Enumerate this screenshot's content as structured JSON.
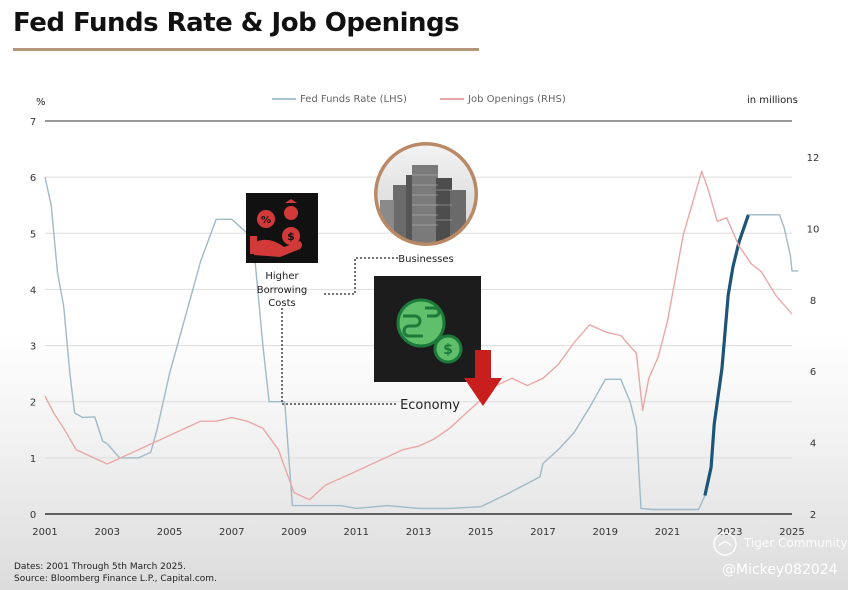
{
  "header": {
    "title": "Fed Funds Rate & Job Openings"
  },
  "legend": {
    "fed": "Fed Funds Rate (LHS)",
    "jobs": "Job Openings (RHS)",
    "left_unit": "%",
    "right_unit": "in millions"
  },
  "annotations": {
    "borrowing": [
      "Higher",
      "Borrowing",
      "Costs"
    ],
    "businesses": "Businesses",
    "economy": "Economy"
  },
  "footnote": {
    "line1": "Dates: 2001 Through 5th March 2025.",
    "line2": "Source: Bloomberg Finance L.P., Capital.com."
  },
  "watermark": {
    "community": "Tiger Community",
    "user": "@Mickey082024"
  },
  "colors": {
    "fed": "#9fbac8",
    "fed_highlight": "#1c5577",
    "jobs": "#e9a8a6",
    "arrow": "#c81e1e",
    "title_underline": "#b4977b"
  },
  "icons": [
    "percent-dollar-hand-icon",
    "office-buildings-icon",
    "globe-dollar-icon",
    "down-arrow-icon"
  ],
  "chart_data": {
    "type": "line",
    "x_ticks": [
      2001,
      2003,
      2005,
      2007,
      2009,
      2011,
      2013,
      2015,
      2017,
      2019,
      2021,
      2023,
      2025
    ],
    "y_left_ticks": [
      0,
      1,
      2,
      3,
      4,
      5,
      6,
      7
    ],
    "y_right_ticks": [
      2,
      4,
      6,
      8,
      10,
      12
    ],
    "xlim": [
      2001,
      2025
    ],
    "ylim_left": [
      0,
      7
    ],
    "ylim_right": [
      2,
      13
    ],
    "series": [
      {
        "name": "Fed Funds Rate (LHS)",
        "axis": "left",
        "x": [
          2001.0,
          2001.2,
          2001.4,
          2001.6,
          2001.8,
          2001.95,
          2002.2,
          2002.6,
          2002.85,
          2003.0,
          2003.4,
          2003.5,
          2004.0,
          2004.4,
          2004.6,
          2005.0,
          2005.5,
          2006.0,
          2006.5,
          2006.7,
          2007.0,
          2007.5,
          2007.7,
          2008.0,
          2008.2,
          2008.7,
          2008.95,
          2009.5,
          2010.0,
          2010.5,
          2011.0,
          2012.0,
          2013.0,
          2014.0,
          2015.0,
          2015.9,
          2016.0,
          2016.9,
          2017.0,
          2017.5,
          2018.0,
          2018.5,
          2019.0,
          2019.5,
          2019.8,
          2020.0,
          2020.15,
          2020.5,
          2021.0,
          2022.0,
          2022.2
        ],
        "y": [
          6.0,
          5.5,
          4.3,
          3.7,
          2.5,
          1.8,
          1.72,
          1.73,
          1.3,
          1.25,
          1.0,
          1.0,
          1.0,
          1.1,
          1.5,
          2.5,
          3.5,
          4.5,
          5.25,
          5.25,
          5.25,
          5.0,
          4.8,
          3.0,
          2.0,
          2.0,
          0.15,
          0.15,
          0.15,
          0.15,
          0.1,
          0.15,
          0.1,
          0.1,
          0.13,
          0.37,
          0.4,
          0.66,
          0.9,
          1.15,
          1.45,
          1.9,
          2.4,
          2.4,
          2.0,
          1.55,
          0.1,
          0.08,
          0.08,
          0.08,
          0.33
        ]
      },
      {
        "name": "Fed Funds Rate (LHS)",
        "axis": "left",
        "highlight": true,
        "x": [
          2022.2,
          2022.4,
          2022.5,
          2022.75,
          2022.95,
          2023.1,
          2023.3,
          2023.6
        ],
        "y": [
          0.33,
          0.83,
          1.6,
          2.6,
          3.9,
          4.4,
          4.85,
          5.33
        ]
      },
      {
        "name": "Fed Funds Rate (LHS)",
        "axis": "left",
        "x": [
          2023.6,
          2024.0,
          2024.6,
          2024.75,
          2024.95,
          2025.0,
          2025.2
        ],
        "y": [
          5.33,
          5.33,
          5.33,
          5.1,
          4.6,
          4.33,
          4.33
        ]
      },
      {
        "name": "Job Openings (RHS)",
        "axis": "right",
        "x": [
          2001.0,
          2001.3,
          2001.6,
          2002.0,
          2002.5,
          2003.0,
          2003.5,
          2004.0,
          2004.5,
          2005.0,
          2005.5,
          2006.0,
          2006.5,
          2007.0,
          2007.5,
          2008.0,
          2008.5,
          2009.0,
          2009.5,
          2010.0,
          2010.5,
          2011.0,
          2011.5,
          2012.0,
          2012.5,
          2013.0,
          2013.5,
          2014.0,
          2014.5,
          2015.0,
          2015.5,
          2016.0,
          2016.5,
          2017.0,
          2017.5,
          2018.0,
          2018.5,
          2019.0,
          2019.5,
          2020.0,
          2020.2,
          2020.4,
          2020.7,
          2021.0,
          2021.5,
          2021.9,
          2022.1,
          2022.3,
          2022.6,
          2022.9,
          2023.3,
          2023.7,
          2024.0,
          2024.5,
          2024.8,
          2025.0
        ],
        "y": [
          5.3,
          4.8,
          4.4,
          3.8,
          3.6,
          3.4,
          3.6,
          3.8,
          4.0,
          4.2,
          4.4,
          4.6,
          4.6,
          4.7,
          4.6,
          4.4,
          3.8,
          2.6,
          2.4,
          2.8,
          3.0,
          3.2,
          3.4,
          3.6,
          3.8,
          3.9,
          4.1,
          4.4,
          4.8,
          5.2,
          5.6,
          5.8,
          5.6,
          5.8,
          6.2,
          6.8,
          7.3,
          7.1,
          7.0,
          6.5,
          4.9,
          5.8,
          6.4,
          7.4,
          9.8,
          11.0,
          11.6,
          11.1,
          10.2,
          10.3,
          9.5,
          9.0,
          8.8,
          8.1,
          7.8,
          7.6
        ]
      }
    ]
  }
}
